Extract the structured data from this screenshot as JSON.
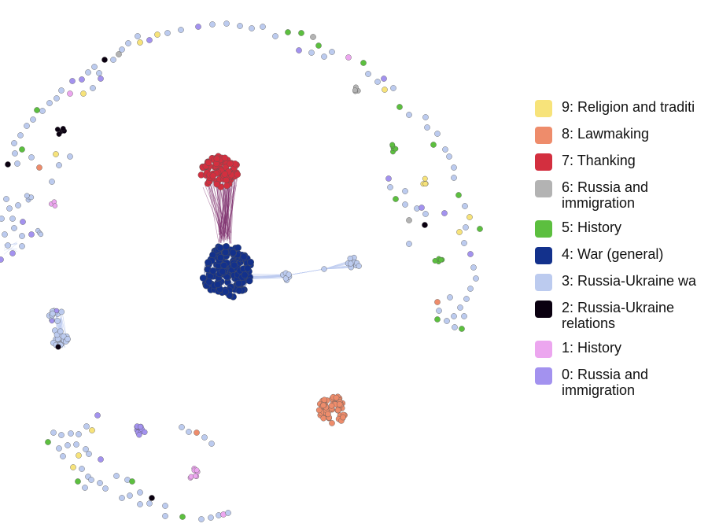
{
  "legend": [
    {
      "id": 9,
      "label": "9: Religion and traditi",
      "color": "#f7e37a"
    },
    {
      "id": 8,
      "label": "8: Lawmaking",
      "color": "#ee8c6b"
    },
    {
      "id": 7,
      "label": "7: Thanking",
      "color": "#d32f3f"
    },
    {
      "id": 6,
      "label": "6: Russia and immigration",
      "color": "#b3b3b3"
    },
    {
      "id": 5,
      "label": "5: History",
      "color": "#5cbf3f"
    },
    {
      "id": 4,
      "label": "4: War (general)",
      "color": "#13318c"
    },
    {
      "id": 3,
      "label": "3: Russia-Ukraine wa",
      "color": "#bccbef"
    },
    {
      "id": 2,
      "label": "2: Russia-Ukraine relations",
      "color": "#0a0010"
    },
    {
      "id": 1,
      "label": "1: History",
      "color": "#eca6ef"
    },
    {
      "id": 0,
      "label": "0: Russia and immigration",
      "color": "#a392ef"
    }
  ]
}
